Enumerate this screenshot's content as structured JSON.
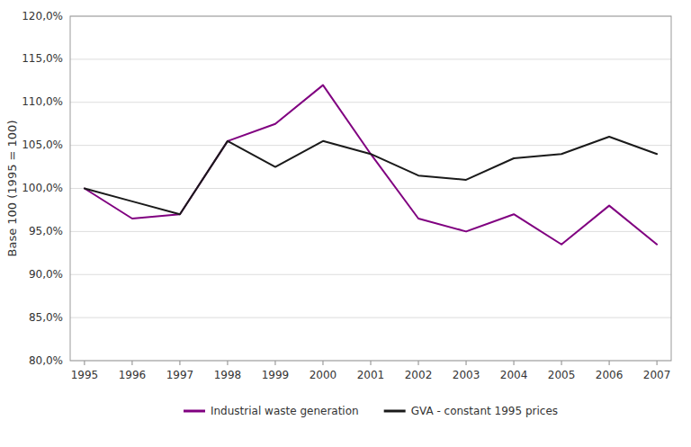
{
  "chart_data": {
    "type": "line",
    "y_label": "Base 100 (1995 = 100)",
    "x": [
      1995,
      1996,
      1997,
      1998,
      1999,
      2000,
      2001,
      2002,
      2003,
      2004,
      2005,
      2006,
      2007
    ],
    "series": [
      {
        "name": "Industrial waste generation",
        "color": "#800080",
        "values": [
          100.0,
          96.5,
          97.0,
          105.5,
          107.5,
          112.0,
          104.0,
          96.5,
          95.0,
          97.0,
          93.5,
          98.0,
          93.5
        ]
      },
      {
        "name": "GVA - constant 1995 prices",
        "color": "#1a1a1a",
        "values": [
          100.0,
          98.5,
          97.0,
          105.5,
          102.5,
          105.5,
          104.0,
          101.5,
          101.0,
          103.5,
          104.0,
          106.0,
          104.0
        ]
      }
    ],
    "xlim": [
      1994.7,
      2007.3
    ],
    "xticks": [
      1995,
      1996,
      1997,
      1998,
      1999,
      2000,
      2001,
      2002,
      2003,
      2004,
      2005,
      2006,
      2007
    ],
    "ylim": [
      80.0,
      120.0
    ],
    "yticks": [
      {
        "value": 80.0,
        "label": "80,0%"
      },
      {
        "value": 85.0,
        "label": "85,0%"
      },
      {
        "value": 90.0,
        "label": "90,0%"
      },
      {
        "value": 95.0,
        "label": "95,0%"
      },
      {
        "value": 100.0,
        "label": "100,0%"
      },
      {
        "value": 105.0,
        "label": "105,0%"
      },
      {
        "value": 110.0,
        "label": "110,0%"
      },
      {
        "value": 115.0,
        "label": "115,0%"
      },
      {
        "value": 120.0,
        "label": "120,0%"
      }
    ],
    "grid": true,
    "legend": "bottom"
  }
}
